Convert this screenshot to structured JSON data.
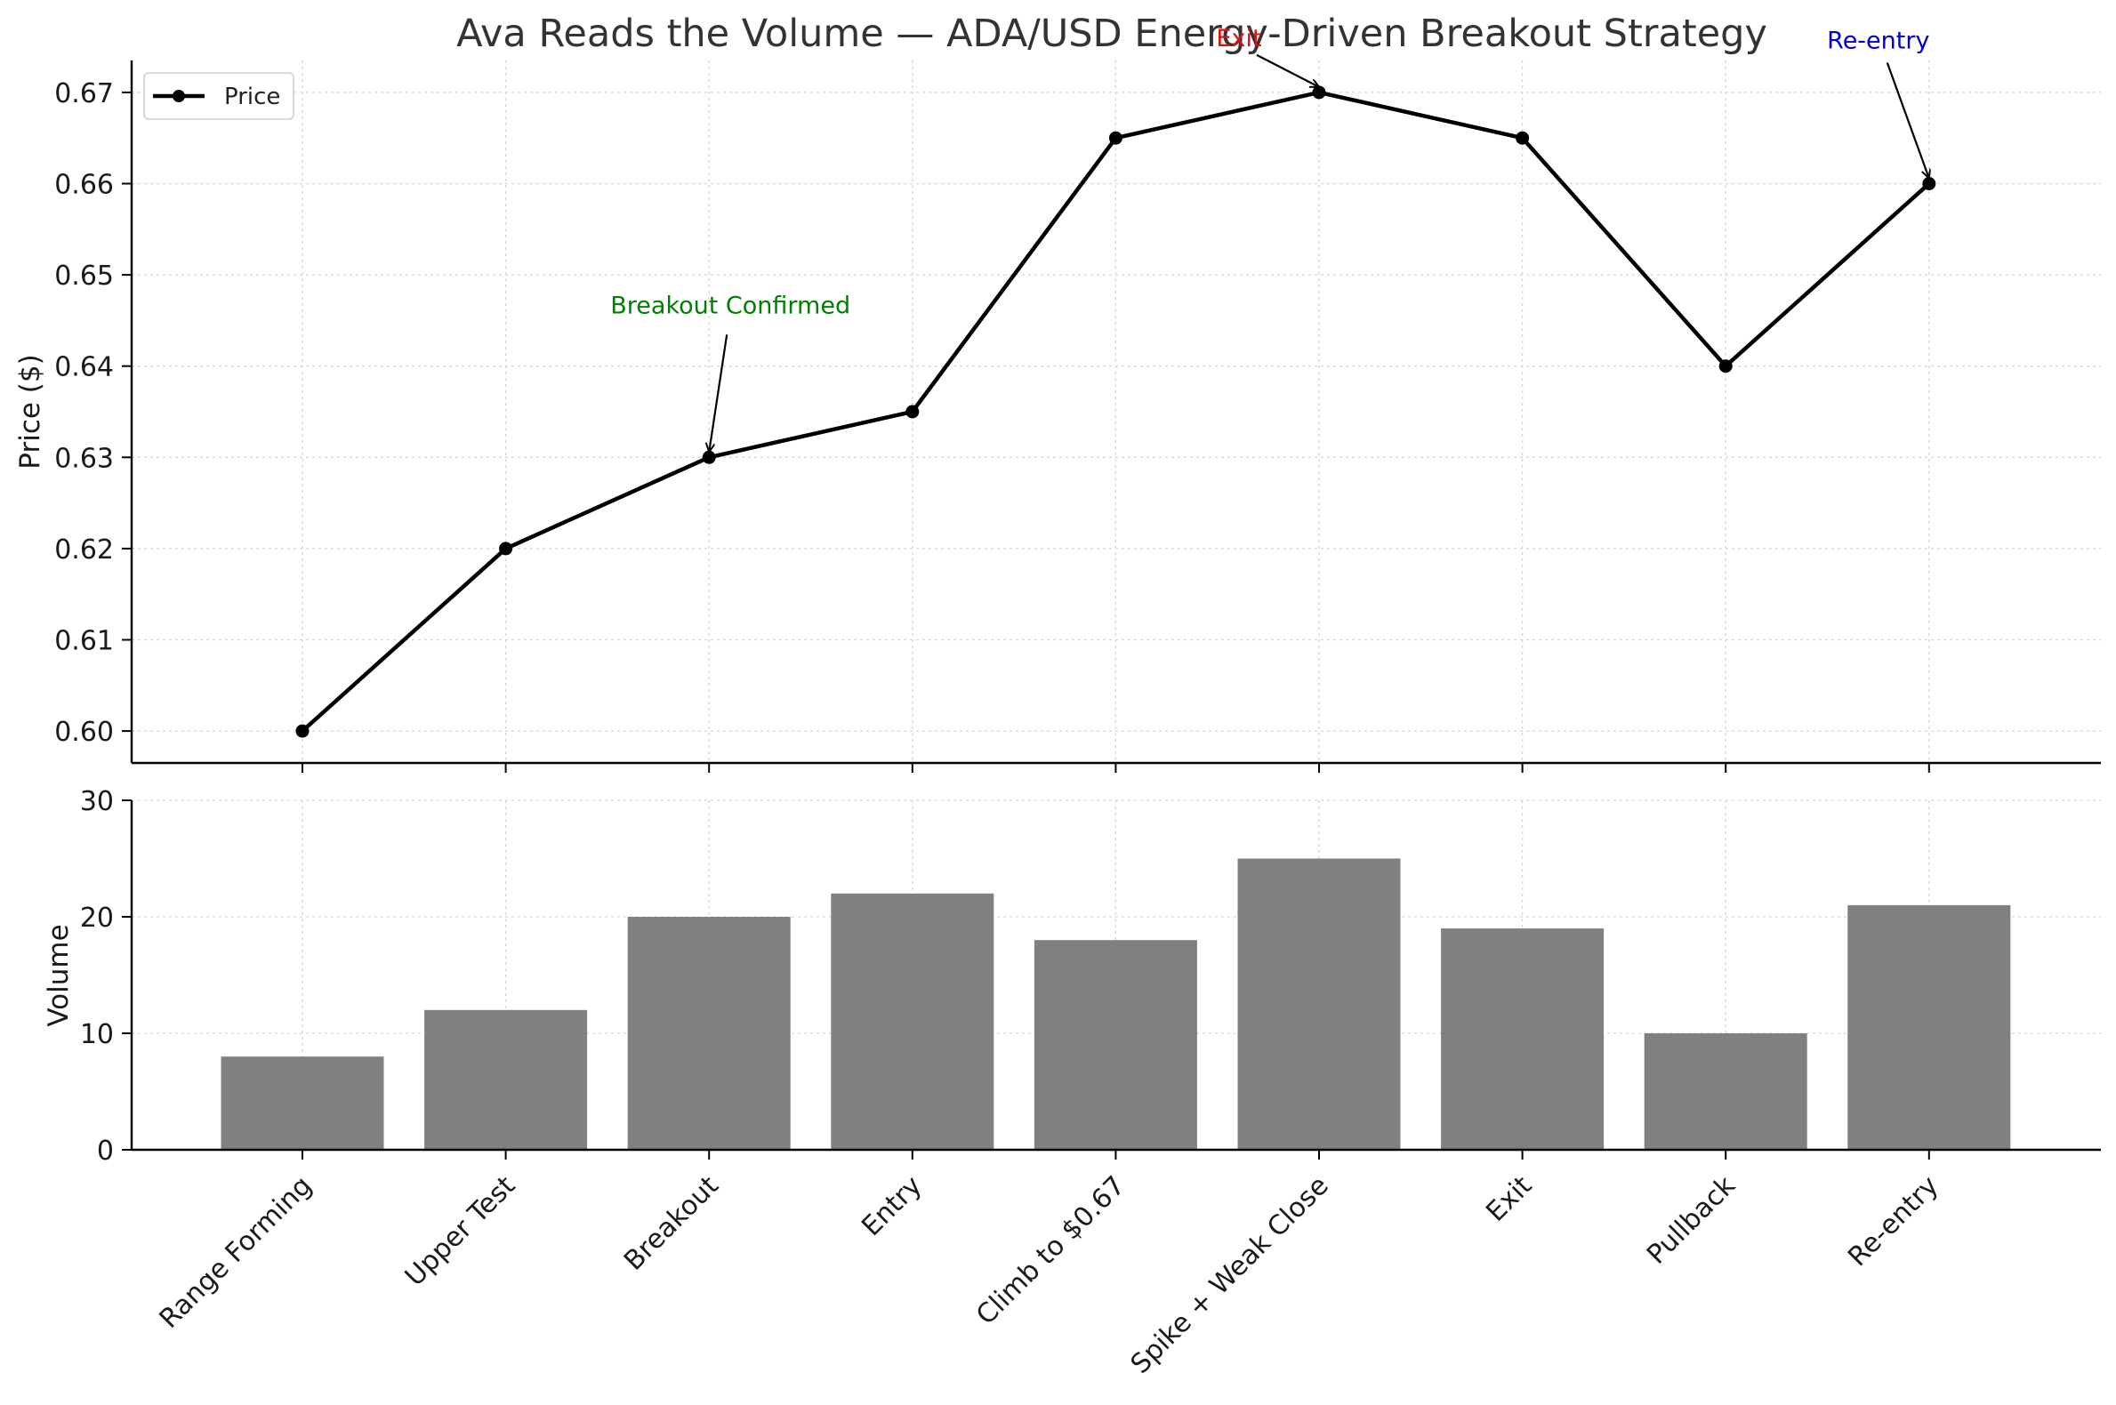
{
  "chart_data": {
    "type": "line+bar",
    "title": "Ava Reads the Volume — ADA/USD Energy-Driven Breakout Strategy",
    "categories": [
      "Range Forming",
      "Upper Test",
      "Breakout",
      "Entry",
      "Climb to $0.67",
      "Spike + Weak Close",
      "Exit",
      "Pullback",
      "Re-entry"
    ],
    "price": {
      "series_name": "Price",
      "type": "line",
      "ylabel": "Price ($)",
      "values": [
        0.6,
        0.62,
        0.63,
        0.635,
        0.665,
        0.67,
        0.665,
        0.64,
        0.66
      ],
      "yticks": [
        "0.60",
        "0.61",
        "0.62",
        "0.63",
        "0.64",
        "0.65",
        "0.66",
        "0.67"
      ],
      "ylim": [
        0.5965,
        0.6735
      ],
      "color": "#000000",
      "legend_location": "upper-left",
      "grid": true
    },
    "volume": {
      "type": "bar",
      "ylabel": "Volume",
      "values": [
        8,
        12,
        20,
        22,
        18,
        25,
        19,
        10,
        21
      ],
      "yticks": [
        "0",
        "10",
        "20",
        "30"
      ],
      "ylim": [
        0,
        30
      ],
      "color": "#808080",
      "grid": true
    },
    "annotations": [
      {
        "text": "Breakout Confirmed",
        "category_index": 2,
        "color": "#008000"
      },
      {
        "text": "Exit",
        "category_index": 5,
        "color": "#e01010"
      },
      {
        "text": "Re-entry",
        "category_index": 8,
        "color": "#0000cc"
      }
    ]
  }
}
